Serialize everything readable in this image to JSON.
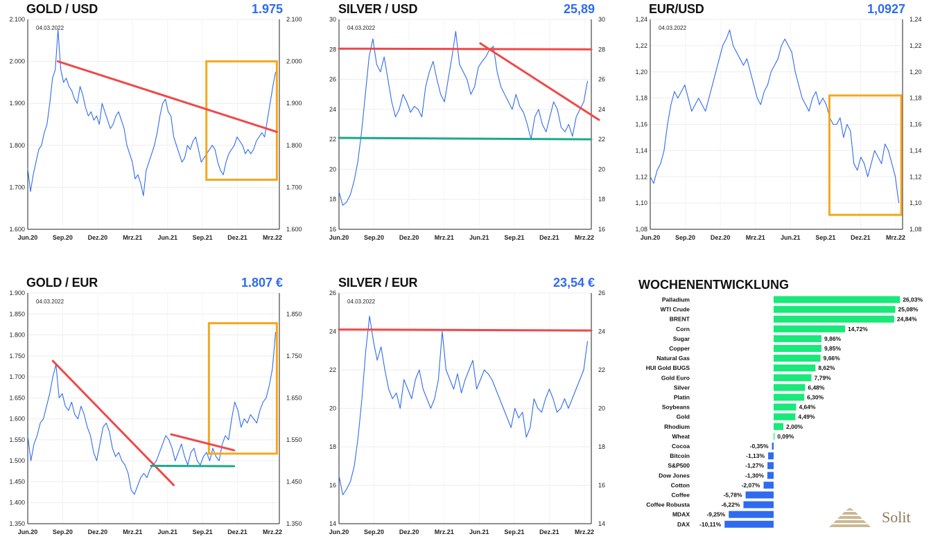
{
  "chart_data": [
    {
      "id": "gold-usd",
      "type": "line",
      "title": "GOLD / USD",
      "value_label": "1.975",
      "date_label": "04.03.2022",
      "x_ticks": [
        "Jun.20",
        "Sep.20",
        "Dez.20",
        "Mrz.21",
        "Jun.21",
        "Sep.21",
        "Dez.21",
        "Mrz.22"
      ],
      "y_ticks_left": [
        "1.600",
        "1.700",
        "1.800",
        "1.900",
        "2.000",
        "2.100"
      ],
      "y_ticks_right": [
        "1.600",
        "1.700",
        "1.800",
        "1.900",
        "2.000",
        "2.100"
      ],
      "ylim": [
        1600,
        2100
      ],
      "series": [
        {
          "values": [
            1745,
            1690,
            1730,
            1760,
            1790,
            1800,
            1830,
            1850,
            1900,
            1960,
            1980,
            2075,
            1980,
            1950,
            1960,
            1940,
            1930,
            1910,
            1900,
            1940,
            1920,
            1890,
            1870,
            1880,
            1860,
            1870,
            1850,
            1900,
            1880,
            1860,
            1840,
            1850,
            1870,
            1880,
            1860,
            1840,
            1800,
            1780,
            1760,
            1720,
            1730,
            1710,
            1680,
            1740,
            1760,
            1780,
            1800,
            1830,
            1870,
            1900,
            1910,
            1880,
            1870,
            1820,
            1800,
            1780,
            1760,
            1770,
            1800,
            1790,
            1810,
            1820,
            1790,
            1760,
            1770,
            1780,
            1790,
            1800,
            1790,
            1760,
            1740,
            1730,
            1760,
            1780,
            1790,
            1800,
            1820,
            1810,
            1800,
            1780,
            1790,
            1780,
            1790,
            1810,
            1820,
            1830,
            1820,
            1860,
            1900,
            1940,
            1975
          ]
        }
      ],
      "annotations": {
        "trendlines": [
          {
            "color": "#f04848",
            "from": [
              0.12,
              2000
            ],
            "to": [
              0.99,
              1832
            ]
          }
        ],
        "boxes": [
          {
            "color": "#f3a81e",
            "x0": 0.71,
            "x1": 0.99,
            "y0": 1718,
            "y1": 2000
          }
        ]
      }
    },
    {
      "id": "silver-usd",
      "type": "line",
      "title": "SILVER / USD",
      "value_label": "25,89",
      "date_label": "04.03.2022",
      "x_ticks": [
        "Jun.20",
        "Sep.20",
        "Dez.20",
        "Mrz.21",
        "Jun.21",
        "Sep.21",
        "Dez.21",
        "Mrz.22"
      ],
      "y_ticks_left": [
        "16",
        "18",
        "20",
        "22",
        "24",
        "26",
        "28",
        "30"
      ],
      "y_ticks_right": [
        "16",
        "18",
        "20",
        "22",
        "24",
        "26",
        "28",
        "30"
      ],
      "ylim": [
        16,
        30
      ],
      "series": [
        {
          "values": [
            18.5,
            17.6,
            17.8,
            18.3,
            19.2,
            20.5,
            22.5,
            25.0,
            27.5,
            28.7,
            27.0,
            26.5,
            27.5,
            26.0,
            24.5,
            23.5,
            24.0,
            25.0,
            24.5,
            23.8,
            24.2,
            24.0,
            23.5,
            25.5,
            26.5,
            27.2,
            26.0,
            25.0,
            24.5,
            26.0,
            27.5,
            29.2,
            27.0,
            26.5,
            26.0,
            25.0,
            25.5,
            26.8,
            27.2,
            27.5,
            28.0,
            28.2,
            26.5,
            25.5,
            25.0,
            24.5,
            24.0,
            25.0,
            24.2,
            23.8,
            23.0,
            22.0,
            23.5,
            24.0,
            23.0,
            22.5,
            23.5,
            24.5,
            24.0,
            22.8,
            22.5,
            23.0,
            22.2,
            23.5,
            24.0,
            24.5,
            25.9
          ]
        }
      ],
      "annotations": {
        "trendlines": [
          {
            "color": "#f04848",
            "from": [
              0.0,
              28.05
            ],
            "to": [
              1.0,
              28.0
            ]
          },
          {
            "color": "#f04848",
            "from": [
              0.56,
              28.4
            ],
            "to": [
              1.03,
              23.3
            ]
          },
          {
            "color": "#1aaa8a",
            "from": [
              0.0,
              22.1
            ],
            "to": [
              1.0,
              22.0
            ]
          }
        ],
        "boxes": []
      }
    },
    {
      "id": "eur-usd",
      "type": "line",
      "title": "EUR/USD",
      "value_label": "1,0927",
      "date_label": "04.03.2022",
      "x_ticks": [
        "Jun.20",
        "Sep.20",
        "Dez.20",
        "Mrz.21",
        "Jun.21",
        "Sep.21",
        "Dez.21",
        "Mrz.22"
      ],
      "y_ticks_left": [
        "1,08",
        "1,10",
        "1,12",
        "1,14",
        "1,16",
        "1,18",
        "1,20",
        "1,22",
        "1,24"
      ],
      "y_ticks_right": [
        "1,08",
        "1,10",
        "1,12",
        "1,14",
        "1,16",
        "1,18",
        "1,20",
        "1,22",
        "1,24"
      ],
      "ylim": [
        1.08,
        1.24
      ],
      "series": [
        {
          "values": [
            1.12,
            1.115,
            1.125,
            1.13,
            1.14,
            1.16,
            1.175,
            1.185,
            1.18,
            1.185,
            1.19,
            1.18,
            1.17,
            1.175,
            1.18,
            1.175,
            1.17,
            1.18,
            1.19,
            1.2,
            1.21,
            1.22,
            1.225,
            1.232,
            1.22,
            1.215,
            1.21,
            1.205,
            1.21,
            1.2,
            1.19,
            1.18,
            1.175,
            1.185,
            1.19,
            1.2,
            1.205,
            1.21,
            1.22,
            1.225,
            1.22,
            1.215,
            1.2,
            1.19,
            1.18,
            1.175,
            1.17,
            1.18,
            1.185,
            1.175,
            1.18,
            1.175,
            1.165,
            1.16,
            1.16,
            1.165,
            1.15,
            1.16,
            1.155,
            1.13,
            1.125,
            1.135,
            1.13,
            1.12,
            1.13,
            1.14,
            1.135,
            1.13,
            1.145,
            1.14,
            1.13,
            1.12,
            1.1
          ]
        }
      ],
      "annotations": {
        "trendlines": [],
        "boxes": [
          {
            "color": "#f3a81e",
            "x0": 0.71,
            "x1": 0.995,
            "y0": 1.091,
            "y1": 1.182
          }
        ]
      }
    },
    {
      "id": "gold-eur",
      "type": "line",
      "title": "GOLD / EUR",
      "value_label": "1.807 €",
      "date_label": "04.03.2022",
      "x_ticks": [
        "Jun.20",
        "Sep.20",
        "Dez.20",
        "Mrz.21",
        "Jun.21",
        "Sep.21",
        "Dez.21",
        "Mrz.22"
      ],
      "y_ticks_left": [
        "1.350",
        "1.400",
        "1.450",
        "1.500",
        "1.550",
        "1.600",
        "1.650",
        "1.700",
        "1.750",
        "1.800",
        "1.850",
        "1.900"
      ],
      "y_ticks_right": [
        "1.350",
        "1.450",
        "1.550",
        "1.650",
        "1.750",
        "1.850"
      ],
      "ylim": [
        1350,
        1900
      ],
      "series": [
        {
          "values": [
            1560,
            1500,
            1540,
            1560,
            1590,
            1600,
            1630,
            1660,
            1700,
            1730,
            1650,
            1660,
            1630,
            1620,
            1640,
            1610,
            1600,
            1630,
            1610,
            1580,
            1560,
            1520,
            1500,
            1540,
            1580,
            1590,
            1570,
            1530,
            1510,
            1520,
            1500,
            1490,
            1470,
            1430,
            1420,
            1440,
            1460,
            1470,
            1460,
            1480,
            1490,
            1500,
            1520,
            1540,
            1560,
            1550,
            1530,
            1500,
            1520,
            1540,
            1510,
            1490,
            1520,
            1530,
            1500,
            1490,
            1510,
            1520,
            1500,
            1530,
            1510,
            1500,
            1540,
            1560,
            1550,
            1600,
            1640,
            1620,
            1580,
            1600,
            1590,
            1610,
            1600,
            1590,
            1620,
            1640,
            1650,
            1680,
            1720,
            1807
          ]
        }
      ],
      "annotations": {
        "trendlines": [
          {
            "color": "#f04848",
            "from": [
              0.1,
              1738
            ],
            "to": [
              0.58,
              1442
            ]
          },
          {
            "color": "#f04848",
            "from": [
              0.57,
              1563
            ],
            "to": [
              0.82,
              1525
            ]
          },
          {
            "color": "#1aaa8a",
            "from": [
              0.49,
              1488
            ],
            "to": [
              0.82,
              1487
            ]
          }
        ],
        "boxes": [
          {
            "color": "#f3a81e",
            "x0": 0.72,
            "x1": 0.99,
            "y0": 1517,
            "y1": 1828
          }
        ]
      }
    },
    {
      "id": "silver-eur",
      "type": "line",
      "title": "SILVER / EUR",
      "value_label": "23,54 €",
      "date_label": "04.03.2022",
      "x_ticks": [
        "Jun.20",
        "Sep.20",
        "Dez.20",
        "Mrz.21",
        "Jun.21",
        "Sep.21",
        "Dez.21",
        "Mrz.22"
      ],
      "y_ticks_left": [
        "14",
        "16",
        "18",
        "20",
        "22",
        "24",
        "26"
      ],
      "y_ticks_right": [
        "14",
        "16",
        "18",
        "20",
        "22",
        "24",
        "26"
      ],
      "ylim": [
        14,
        26
      ],
      "series": [
        {
          "values": [
            16.5,
            15.5,
            15.8,
            16.2,
            17.0,
            18.5,
            20.5,
            23.0,
            24.8,
            23.5,
            22.5,
            23.2,
            22.0,
            21.0,
            20.5,
            20.8,
            20.0,
            21.5,
            21.0,
            20.5,
            21.5,
            22.0,
            21.0,
            20.5,
            20.0,
            20.5,
            21.5,
            24.0,
            22.0,
            21.5,
            21.0,
            21.8,
            20.8,
            21.5,
            22.0,
            22.5,
            21.0,
            21.5,
            22.0,
            21.8,
            21.5,
            21.0,
            20.5,
            20.0,
            19.5,
            19.0,
            20.0,
            19.5,
            19.8,
            18.5,
            19.0,
            20.5,
            20.0,
            19.8,
            20.5,
            21.0,
            20.5,
            19.8,
            20.0,
            20.5,
            20.0,
            20.5,
            21.0,
            21.5,
            22.0,
            23.5
          ]
        }
      ],
      "annotations": {
        "trendlines": [
          {
            "color": "#f04848",
            "from": [
              0.0,
              24.1
            ],
            "to": [
              1.0,
              24.05
            ]
          }
        ],
        "boxes": []
      }
    },
    {
      "id": "wochenentwicklung",
      "type": "bar",
      "title": "WOCHENENTWICKLUNG",
      "categories": [
        "Palladium",
        "WTI Crude",
        "BRENT",
        "Corn",
        "Sugar",
        "Copper",
        "Natural Gas",
        "HUI Gold BUGS",
        "Gold Euro",
        "Silver",
        "Platin",
        "Soybeans",
        "Gold",
        "Rhodium",
        "Wheat",
        "Cocoa",
        "Bitcoin",
        "S&P500",
        "Dow Jones",
        "Cotton",
        "Coffee",
        "Coffee Robusta",
        "MDAX",
        "DAX"
      ],
      "values": [
        26.03,
        25.08,
        24.84,
        14.72,
        9.86,
        9.85,
        9.66,
        8.62,
        7.79,
        6.48,
        6.3,
        4.64,
        4.49,
        2.0,
        0.09,
        -0.35,
        -1.13,
        -1.27,
        -1.3,
        -2.07,
        -5.78,
        -6.22,
        -9.25,
        -10.11
      ],
      "value_labels": [
        "26,03%",
        "25,08%",
        "24,84%",
        "14,72%",
        "9,86%",
        "9,85%",
        "9,66%",
        "8,62%",
        "7,79%",
        "6,48%",
        "6,30%",
        "4,64%",
        "4,49%",
        "2,00%",
        "0,09%",
        "-0,35%",
        "-1,13%",
        "-1,27%",
        "-1,30%",
        "-2,07%",
        "-5,78%",
        "-6,22%",
        "-9,25%",
        "-10,11%"
      ],
      "colors": {
        "positive": "#19e87a",
        "negative": "#2f6bf0"
      }
    }
  ],
  "branding": {
    "logo_text": "Solit",
    "logo_icon": "pyramid-icon"
  }
}
